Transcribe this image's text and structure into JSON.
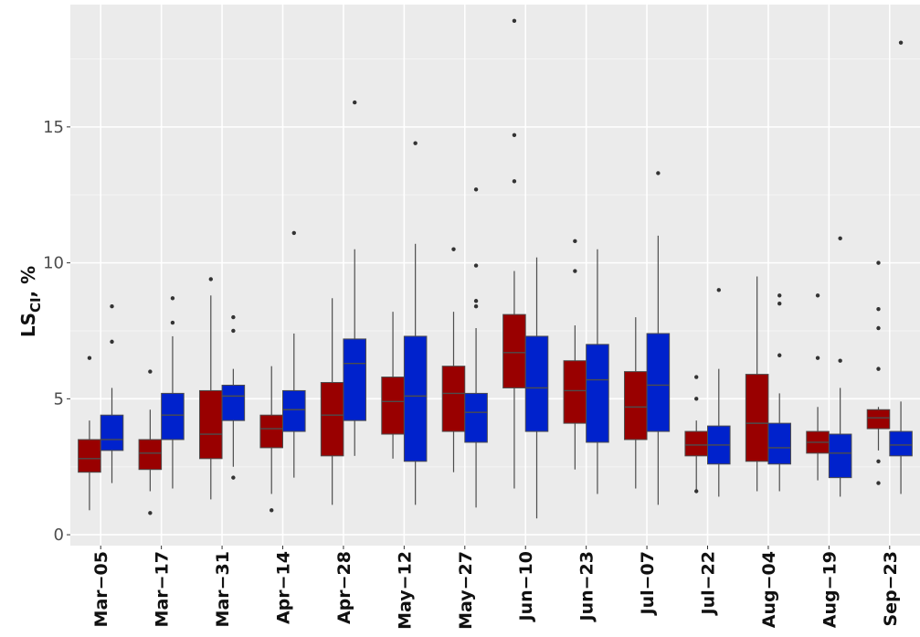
{
  "chart_data": {
    "type": "boxplot",
    "title": "",
    "ylabel": "LS",
    "ylabel_subscript": "CI",
    "ylabel_suffix": ", %",
    "xlabel": "",
    "ylim": [
      -0.4,
      19.5
    ],
    "yticks": [
      0,
      5,
      10,
      15
    ],
    "ytick_labels": [
      "0",
      "5",
      "10",
      "15"
    ],
    "grid": true,
    "legend": "none",
    "categories": [
      "Mar-05",
      "Mar-17",
      "Mar-31",
      "Apr-14",
      "Apr-28",
      "May-12",
      "May-27",
      "Jun-10",
      "Jun-23",
      "Jul-07",
      "Jul-22",
      "Aug-04",
      "Aug-19",
      "Sep-23"
    ],
    "category_labels": [
      "Mar−05",
      "Mar−17",
      "Mar−31",
      "Apr−14",
      "Apr−28",
      "May−12",
      "May−27",
      "Jun−10",
      "Jun−23",
      "Jul−07",
      "Jul−22",
      "Aug−04",
      "Aug−19",
      "Sep−23"
    ],
    "colors": {
      "panel": "#ebebeb",
      "grid": "#ffffff",
      "whisker": "#4d4d4d",
      "outlier": "#333333"
    },
    "series": [
      {
        "color": "#990000",
        "boxes": [
          {
            "q1": 2.3,
            "median": 2.8,
            "q3": 3.5,
            "min": 0.9,
            "max": 4.2,
            "outliers": [
              6.5
            ]
          },
          {
            "q1": 2.4,
            "median": 3.0,
            "q3": 3.5,
            "min": 1.6,
            "max": 4.6,
            "outliers": [
              6.0,
              0.8
            ]
          },
          {
            "q1": 2.8,
            "median": 3.7,
            "q3": 5.3,
            "min": 1.3,
            "max": 8.8,
            "outliers": [
              9.4
            ]
          },
          {
            "q1": 3.2,
            "median": 3.9,
            "q3": 4.4,
            "min": 1.5,
            "max": 6.2,
            "outliers": [
              0.9
            ]
          },
          {
            "q1": 2.9,
            "median": 4.4,
            "q3": 5.6,
            "min": 1.1,
            "max": 8.7,
            "outliers": []
          },
          {
            "q1": 3.7,
            "median": 4.9,
            "q3": 5.8,
            "min": 2.8,
            "max": 8.2,
            "outliers": []
          },
          {
            "q1": 3.8,
            "median": 5.2,
            "q3": 6.2,
            "min": 2.3,
            "max": 8.2,
            "outliers": [
              10.5
            ]
          },
          {
            "q1": 5.4,
            "median": 6.7,
            "q3": 8.1,
            "min": 1.7,
            "max": 9.7,
            "outliers": [
              18.9,
              14.7,
              13.0
            ]
          },
          {
            "q1": 4.1,
            "median": 5.3,
            "q3": 6.4,
            "min": 2.4,
            "max": 7.7,
            "outliers": [
              10.8,
              9.7
            ]
          },
          {
            "q1": 3.5,
            "median": 4.7,
            "q3": 6.0,
            "min": 1.7,
            "max": 8.0,
            "outliers": []
          },
          {
            "q1": 2.9,
            "median": 3.3,
            "q3": 3.8,
            "min": 1.6,
            "max": 4.2,
            "outliers": [
              5.8,
              5.0,
              1.6
            ]
          },
          {
            "q1": 2.7,
            "median": 4.1,
            "q3": 5.9,
            "min": 1.6,
            "max": 9.5,
            "outliers": []
          },
          {
            "q1": 3.0,
            "median": 3.4,
            "q3": 3.8,
            "min": 2.0,
            "max": 4.7,
            "outliers": [
              8.8,
              6.5
            ]
          },
          {
            "q1": 3.9,
            "median": 4.3,
            "q3": 4.6,
            "min": 3.1,
            "max": 4.7,
            "outliers": [
              10.0,
              8.3,
              7.6,
              6.1,
              2.7,
              1.9
            ]
          }
        ]
      },
      {
        "color": "#0022cc",
        "boxes": [
          {
            "q1": 3.1,
            "median": 3.5,
            "q3": 4.4,
            "min": 1.9,
            "max": 5.4,
            "outliers": [
              8.4,
              7.1
            ]
          },
          {
            "q1": 3.5,
            "median": 4.4,
            "q3": 5.2,
            "min": 1.7,
            "max": 7.3,
            "outliers": [
              8.7,
              7.8
            ]
          },
          {
            "q1": 4.2,
            "median": 5.1,
            "q3": 5.5,
            "min": 2.5,
            "max": 6.1,
            "outliers": [
              8.0,
              7.5,
              2.1
            ]
          },
          {
            "q1": 3.8,
            "median": 4.6,
            "q3": 5.3,
            "min": 2.1,
            "max": 7.4,
            "outliers": [
              11.1
            ]
          },
          {
            "q1": 4.2,
            "median": 6.3,
            "q3": 7.2,
            "min": 2.9,
            "max": 10.5,
            "outliers": [
              15.9
            ]
          },
          {
            "q1": 2.7,
            "median": 5.1,
            "q3": 7.3,
            "min": 1.1,
            "max": 10.7,
            "outliers": [
              14.4
            ]
          },
          {
            "q1": 3.4,
            "median": 4.5,
            "q3": 5.2,
            "min": 1.0,
            "max": 7.6,
            "outliers": [
              12.7,
              9.9,
              8.6,
              8.4
            ]
          },
          {
            "q1": 3.8,
            "median": 5.4,
            "q3": 7.3,
            "min": 0.6,
            "max": 10.2,
            "outliers": []
          },
          {
            "q1": 3.4,
            "median": 5.7,
            "q3": 7.0,
            "min": 1.5,
            "max": 10.5,
            "outliers": []
          },
          {
            "q1": 3.8,
            "median": 5.5,
            "q3": 7.4,
            "min": 1.1,
            "max": 11.0,
            "outliers": [
              13.3
            ]
          },
          {
            "q1": 2.6,
            "median": 3.3,
            "q3": 4.0,
            "min": 1.4,
            "max": 6.1,
            "outliers": [
              9.0
            ]
          },
          {
            "q1": 2.6,
            "median": 3.2,
            "q3": 4.1,
            "min": 1.6,
            "max": 5.2,
            "outliers": [
              8.8,
              8.5,
              6.6
            ]
          },
          {
            "q1": 2.1,
            "median": 3.0,
            "q3": 3.7,
            "min": 1.4,
            "max": 5.4,
            "outliers": [
              10.9,
              6.4
            ]
          },
          {
            "q1": 2.9,
            "median": 3.3,
            "q3": 3.8,
            "min": 1.5,
            "max": 4.9,
            "outliers": [
              18.1
            ]
          }
        ]
      }
    ]
  }
}
